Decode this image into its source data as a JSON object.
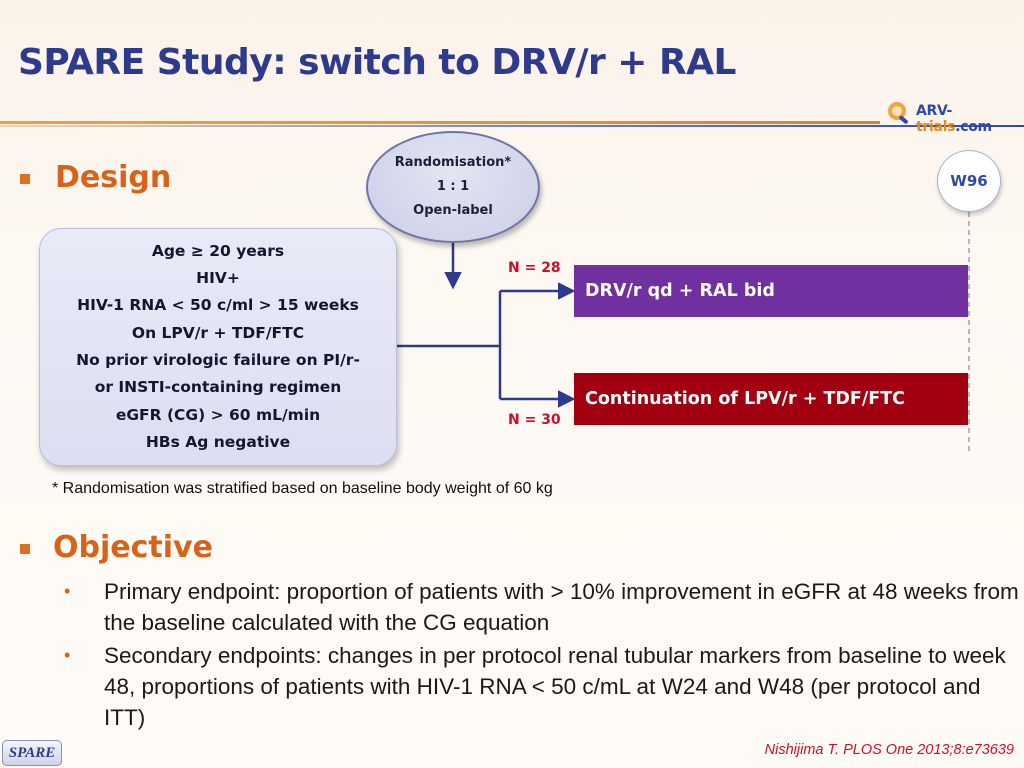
{
  "slide": {
    "title": "SPARE Study: switch to DRV/r + RAL",
    "logo": {
      "prefix": "ARV-",
      "brand": "trials",
      "suffix": ".com"
    }
  },
  "design": {
    "heading": "Design",
    "randomisation": {
      "line1": "Randomisation*",
      "line2": "1 : 1",
      "line3": "Open-label"
    },
    "week_marker": "W96",
    "criteria": [
      "Age ≥ 20 years",
      "HIV+",
      "HIV-1 RNA < 50 c/ml > 15 weeks",
      "On LPV/r + TDF/FTC",
      "No prior virologic failure on PI/r-",
      "or INSTI-containing regimen",
      "eGFR (CG) > 60 mL/min",
      "HBs Ag negative"
    ],
    "arms": [
      {
        "n_label": "N = 28",
        "label": "DRV/r qd + RAL bid",
        "color": "#7030a0"
      },
      {
        "n_label": "N = 30",
        "label": "Continuation of LPV/r + TDF/FTC",
        "color": "#a00010"
      }
    ],
    "footnote": "* Randomisation was stratified based on baseline body weight of 60 kg"
  },
  "objective": {
    "heading": "Objective",
    "items": [
      "Primary endpoint: proportion of patients with > 10% improvement in eGFR at 48 weeks from the baseline calculated with the CG equation",
      "Secondary endpoints: changes in per protocol renal tubular markers from baseline to week 48, proportions of patients with HIV-1 RNA < 50 c/mL at W24 and W48 (per protocol and ITT)"
    ]
  },
  "footer": {
    "tag": "SPARE",
    "citation": "Nishijima T. PLOS One 2013;8:e73639"
  },
  "colors": {
    "title": "#2e3a8c",
    "heading": "#d9621a",
    "n_label": "#c8102e",
    "flow_line": "#2f3a8f"
  }
}
